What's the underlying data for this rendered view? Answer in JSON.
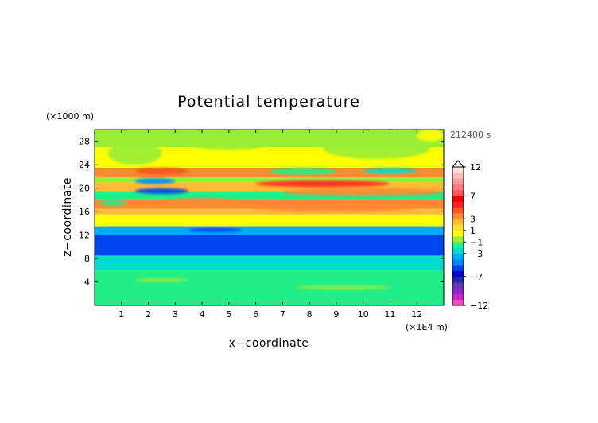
{
  "chart_data": {
    "type": "heatmap",
    "title": "Potential temperature",
    "xlabel": "x−coordinate",
    "ylabel": "z−coordinate",
    "x_unit": "(×1E4 m)",
    "y_unit": "(×1000 m)",
    "time_label": "212400 s",
    "xlim": [
      0,
      13
    ],
    "ylim": [
      0,
      30
    ],
    "x_ticks": [
      1,
      2,
      3,
      4,
      5,
      6,
      7,
      8,
      9,
      10,
      11,
      12
    ],
    "y_ticks": [
      4,
      8,
      12,
      16,
      20,
      24,
      28
    ],
    "colorbar": {
      "levels": [
        -12,
        -11,
        -10,
        -9,
        -8,
        -7,
        -6,
        -5,
        -4,
        -3,
        -2,
        -1,
        0,
        1,
        2,
        3,
        4,
        5,
        6,
        7,
        8,
        9,
        10,
        11,
        12
      ],
      "labels": [
        "12",
        "7",
        "3",
        "1",
        "−1",
        "−3",
        "−7",
        "−12"
      ],
      "label_values": [
        12,
        7,
        3,
        1,
        -1,
        -3,
        -7,
        -12
      ],
      "colors": [
        "#ff44bb",
        "#cc22cc",
        "#8822cc",
        "#6633aa",
        "#2222aa",
        "#0000cc",
        "#0044ee",
        "#0088ff",
        "#00aaff",
        "#00ddcc",
        "#22ee88",
        "#99ee33",
        "#ffff00",
        "#ffdd33",
        "#ffbb33",
        "#ff8833",
        "#ff5522",
        "#ff2222",
        "#ee0000",
        "#ff5555",
        "#ff7777",
        "#ff9999",
        "#ffbbbb",
        "#ffdddd"
      ],
      "extend": "max"
    },
    "bands": [
      {
        "z": [
          0,
          6
        ],
        "value": -2
      },
      {
        "z": [
          6,
          8.5
        ],
        "value": -3
      },
      {
        "z": [
          8.5,
          12
        ],
        "value": -6
      },
      {
        "z": [
          12,
          13.5
        ],
        "value": -4
      },
      {
        "z": [
          13.5,
          15.5
        ],
        "value": 0.3
      },
      {
        "z": [
          15.5,
          16.5
        ],
        "value": 2
      },
      {
        "z": [
          16.5,
          18
        ],
        "value": 3
      },
      {
        "z": [
          18,
          19.5
        ],
        "value": -2
      },
      {
        "z": [
          19.5,
          21
        ],
        "value": 2.5
      },
      {
        "z": [
          21,
          22
        ],
        "value": -1
      },
      {
        "z": [
          22,
          23.5
        ],
        "value": 3
      },
      {
        "z": [
          23.5,
          27
        ],
        "value": 0.2
      },
      {
        "z": [
          27,
          30
        ],
        "value": -0.8
      }
    ],
    "features": [
      {
        "x": [
          1.5,
          3.5
        ],
        "z": [
          19,
          20
        ],
        "value": -6
      },
      {
        "x": [
          1.5,
          3.0
        ],
        "z": [
          20.7,
          21.7
        ],
        "value": -5
      },
      {
        "x": [
          2.5,
          5.5
        ],
        "z": [
          17,
          18.3
        ],
        "value": 3
      },
      {
        "x": [
          6,
          12
        ],
        "z": [
          16,
          17.5
        ],
        "value": 3
      },
      {
        "x": [
          6,
          11
        ],
        "z": [
          20.2,
          21.3
        ],
        "value": 5
      },
      {
        "x": [
          7,
          13
        ],
        "z": [
          18.7,
          20
        ],
        "value": 3
      },
      {
        "x": [
          6.5,
          9.0
        ],
        "z": [
          22.3,
          23.5
        ],
        "value": -2
      },
      {
        "x": [
          10,
          12
        ],
        "z": [
          22.5,
          23.5
        ],
        "value": -3
      },
      {
        "x": [
          1.5,
          3.5
        ],
        "z": [
          22.3,
          23.5
        ],
        "value": 4
      },
      {
        "x": [
          0.2,
          1.2
        ],
        "z": [
          17,
          18
        ],
        "value": -2
      },
      {
        "x": [
          7.5,
          11
        ],
        "z": [
          2.7,
          3.4
        ],
        "value": -0.8
      },
      {
        "x": [
          1.5,
          3.5
        ],
        "z": [
          4.0,
          4.6
        ],
        "value": -0.8
      },
      {
        "x": [
          0.5,
          2.5
        ],
        "z": [
          24,
          28
        ],
        "value": -1
      },
      {
        "x": [
          3.5,
          6.5
        ],
        "z": [
          26.5,
          29
        ],
        "value": -1
      },
      {
        "x": [
          8.5,
          12.5
        ],
        "z": [
          25,
          28.5
        ],
        "value": -1
      },
      {
        "x": [
          12,
          13
        ],
        "z": [
          28,
          30
        ],
        "value": 0.3
      },
      {
        "x": [
          3.5,
          5.5
        ],
        "z": [
          12.5,
          13.2
        ],
        "value": -6
      }
    ]
  }
}
